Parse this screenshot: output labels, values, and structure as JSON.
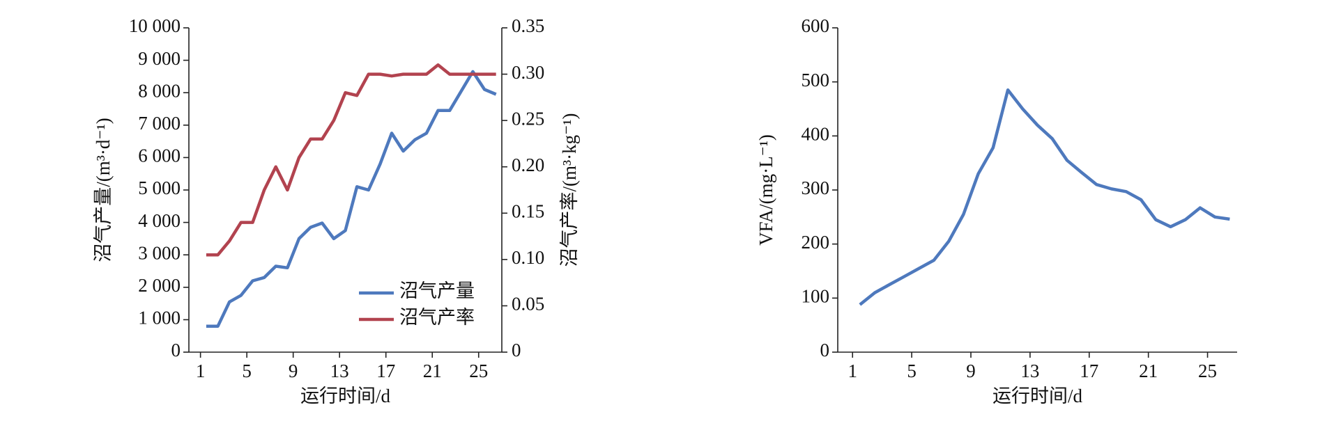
{
  "chart_data": [
    {
      "type": "line",
      "xlabel": "运行时间/d",
      "ylabel": "沼气产量/(m³·d⁻¹)",
      "y2label": "沼气产率/(m³·kg⁻¹)",
      "x": [
        1.5,
        2.5,
        3.5,
        4.5,
        5.5,
        6.5,
        7.5,
        8.5,
        9.5,
        10.5,
        11.5,
        12.5,
        13.5,
        14.5,
        15.5,
        16.5,
        17.5,
        18.5,
        19.5,
        20.5,
        21.5,
        22.5,
        23.5,
        24.5,
        25.5,
        26.5
      ],
      "xlim": [
        0,
        27
      ],
      "xticks": [
        1,
        5,
        9,
        13,
        17,
        21,
        25
      ],
      "ylim": [
        0,
        10000
      ],
      "yticks": [
        0,
        {
          "value": 1000,
          "label": "1 000"
        },
        {
          "value": 2000,
          "label": "2 000"
        },
        {
          "value": 3000,
          "label": "3 000"
        },
        {
          "value": 4000,
          "label": "4 000"
        },
        {
          "value": 5000,
          "label": "5 000"
        },
        {
          "value": 6000,
          "label": "6 000"
        },
        {
          "value": 7000,
          "label": "7 000"
        },
        {
          "value": 8000,
          "label": "8 000"
        },
        {
          "value": 9000,
          "label": "9 000"
        },
        {
          "value": 10000,
          "label": "10 000"
        }
      ],
      "y2lim": [
        0,
        0.35
      ],
      "y2ticks": [
        0,
        0.05,
        {
          "value": 0.1,
          "label": "0.10"
        },
        0.15,
        {
          "value": 0.2,
          "label": "0.20"
        },
        0.25,
        {
          "value": 0.3,
          "label": "0.30"
        },
        0.35
      ],
      "legend": "lower right",
      "series": [
        {
          "name": "沼气产量",
          "color": "#4e79bd",
          "values": [
            800,
            800,
            1550,
            1750,
            2200,
            2300,
            2650,
            2600,
            3500,
            3850,
            3980,
            3500,
            3750,
            5100,
            5000,
            5800,
            6750,
            6200,
            6550,
            6750,
            7450,
            7450,
            8050,
            8650,
            8100,
            7950
          ]
        },
        {
          "name": "沼气产率",
          "color": "#b2434f",
          "axis": "y2",
          "values": [
            0.105,
            0.105,
            0.12,
            0.14,
            0.14,
            0.175,
            0.2,
            0.175,
            0.21,
            0.23,
            0.23,
            0.25,
            0.28,
            0.277,
            0.3,
            0.3,
            0.298,
            0.3,
            0.3,
            0.3,
            0.31,
            0.3,
            0.3,
            0.3,
            0.3,
            0.3
          ]
        }
      ]
    },
    {
      "type": "line",
      "xlabel": "运行时间/d",
      "ylabel": "VFA/(mg·L⁻¹)",
      "x": [
        1.5,
        2.5,
        3.5,
        4.5,
        5.5,
        6.5,
        7.5,
        8.5,
        9.5,
        10.5,
        11.5,
        12.5,
        13.5,
        14.5,
        15.5,
        16.5,
        17.5,
        18.5,
        19.5,
        20.5,
        21.5,
        22.5,
        23.5,
        24.5,
        25.5,
        26.5
      ],
      "xlim": [
        0,
        27
      ],
      "xticks": [
        1,
        5,
        9,
        13,
        17,
        21,
        25
      ],
      "ylim": [
        0,
        600
      ],
      "yticks": [
        0,
        100,
        200,
        300,
        400,
        500,
        600
      ],
      "series": [
        {
          "color": "#4e79bd",
          "values": [
            88,
            110,
            125,
            140,
            155,
            170,
            205,
            255,
            330,
            378,
            485,
            450,
            420,
            395,
            355,
            332,
            310,
            302,
            297,
            282,
            245,
            232,
            245,
            267,
            250,
            246
          ]
        }
      ]
    }
  ]
}
